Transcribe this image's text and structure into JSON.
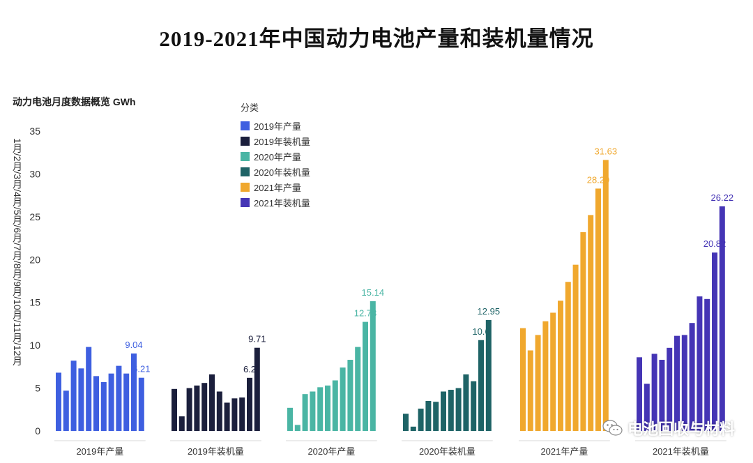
{
  "title": "2019-2021年中国动力电池产量和装机量情况",
  "chart_data": {
    "type": "bar",
    "subtitle": "动力电池月度数据概览 GWh",
    "ylabel": "1月/2月/3月/4月/5月/6月/7月/8月/9月/10月/11月/12月",
    "ylim": [
      0,
      35
    ],
    "yticks": [
      0,
      5,
      10,
      15,
      20,
      25,
      30,
      35
    ],
    "legend_title": "分类",
    "legend_position": "top-center",
    "groups": [
      {
        "name": "2019年产量",
        "color": "#3e5fe0",
        "values": [
          6.8,
          4.7,
          8.2,
          7.3,
          9.8,
          6.4,
          5.7,
          6.7,
          7.6,
          6.7,
          9.04,
          6.21
        ],
        "labels": [
          {
            "index": 10,
            "text": "9.04"
          },
          {
            "index": 11,
            "text": "6.21"
          }
        ]
      },
      {
        "name": "2019年装机量",
        "color": "#1b1f3c",
        "values": [
          4.9,
          1.7,
          5.0,
          5.3,
          5.6,
          6.6,
          4.6,
          3.3,
          3.8,
          3.9,
          6.2,
          9.71
        ],
        "labels": [
          {
            "index": 10,
            "text": "6.2"
          },
          {
            "index": 11,
            "text": "9.71"
          }
        ]
      },
      {
        "name": "2020年产量",
        "color": "#4ab5a4",
        "values": [
          2.7,
          0.7,
          4.3,
          4.6,
          5.1,
          5.3,
          5.9,
          7.4,
          8.3,
          9.8,
          12.73,
          15.14
        ],
        "labels": [
          {
            "index": 10,
            "text": "12.73"
          },
          {
            "index": 11,
            "text": "15.14"
          }
        ]
      },
      {
        "name": "2020年装机量",
        "color": "#1e6366",
        "values": [
          2.0,
          0.5,
          2.6,
          3.5,
          3.4,
          4.6,
          4.8,
          5.0,
          6.6,
          5.8,
          10.6,
          12.95
        ],
        "labels": [
          {
            "index": 10,
            "text": "10.6"
          },
          {
            "index": 11,
            "text": "12.95"
          }
        ]
      },
      {
        "name": "2021年产量",
        "color": "#f0a82e",
        "values": [
          12.0,
          9.4,
          11.2,
          12.8,
          13.8,
          15.2,
          17.4,
          19.4,
          23.2,
          25.2,
          28.29,
          31.63
        ],
        "labels": [
          {
            "index": 10,
            "text": "28.29"
          },
          {
            "index": 11,
            "text": "31.63"
          }
        ]
      },
      {
        "name": "2021年装机量",
        "color": "#4535b5",
        "values": [
          8.6,
          5.5,
          9.0,
          8.3,
          9.7,
          11.1,
          11.2,
          12.6,
          15.7,
          15.4,
          20.82,
          26.22
        ],
        "labels": [
          {
            "index": 10,
            "text": "20.82"
          },
          {
            "index": 11,
            "text": "26.22"
          }
        ]
      }
    ]
  },
  "watermark": {
    "text": "电池回收与材料",
    "icon": "wechat-icon"
  }
}
